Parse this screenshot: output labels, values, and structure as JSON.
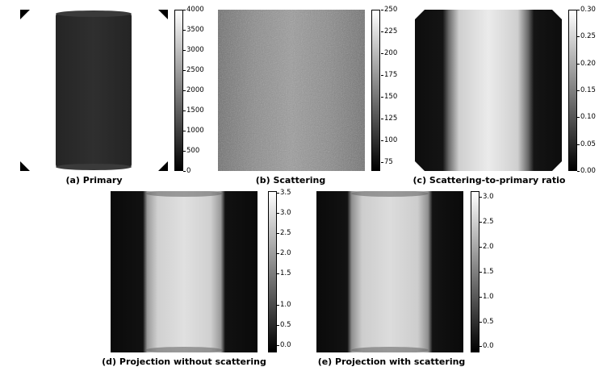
{
  "panels": {
    "a": {
      "caption": "(a) Primary",
      "ticks": [
        "4000",
        "3500",
        "3000",
        "2500",
        "2000",
        "1500",
        "1000",
        "500",
        "0"
      ]
    },
    "b": {
      "caption": "(b) Scattering",
      "ticks": [
        "250",
        "225",
        "200",
        "175",
        "150",
        "125",
        "100",
        "75"
      ]
    },
    "c": {
      "caption": "(c) Scattering-to-primary ratio",
      "ticks": [
        "0.30",
        "0.25",
        "0.20",
        "0.15",
        "0.10",
        "0.05",
        "0.00"
      ]
    },
    "d": {
      "caption": "(d) Projection without scattering",
      "ticks": [
        "3.5",
        "3.0",
        "2.5",
        "2.0",
        "1.5",
        "1.0",
        "0.5",
        "0.0"
      ]
    },
    "e": {
      "caption": "(e) Projection with scattering",
      "ticks": [
        "3.0",
        "2.5",
        "2.0",
        "1.5",
        "1.0",
        "0.5",
        "0.0"
      ]
    }
  },
  "colors": {
    "background": "#ffffff",
    "colormap": "gray"
  }
}
